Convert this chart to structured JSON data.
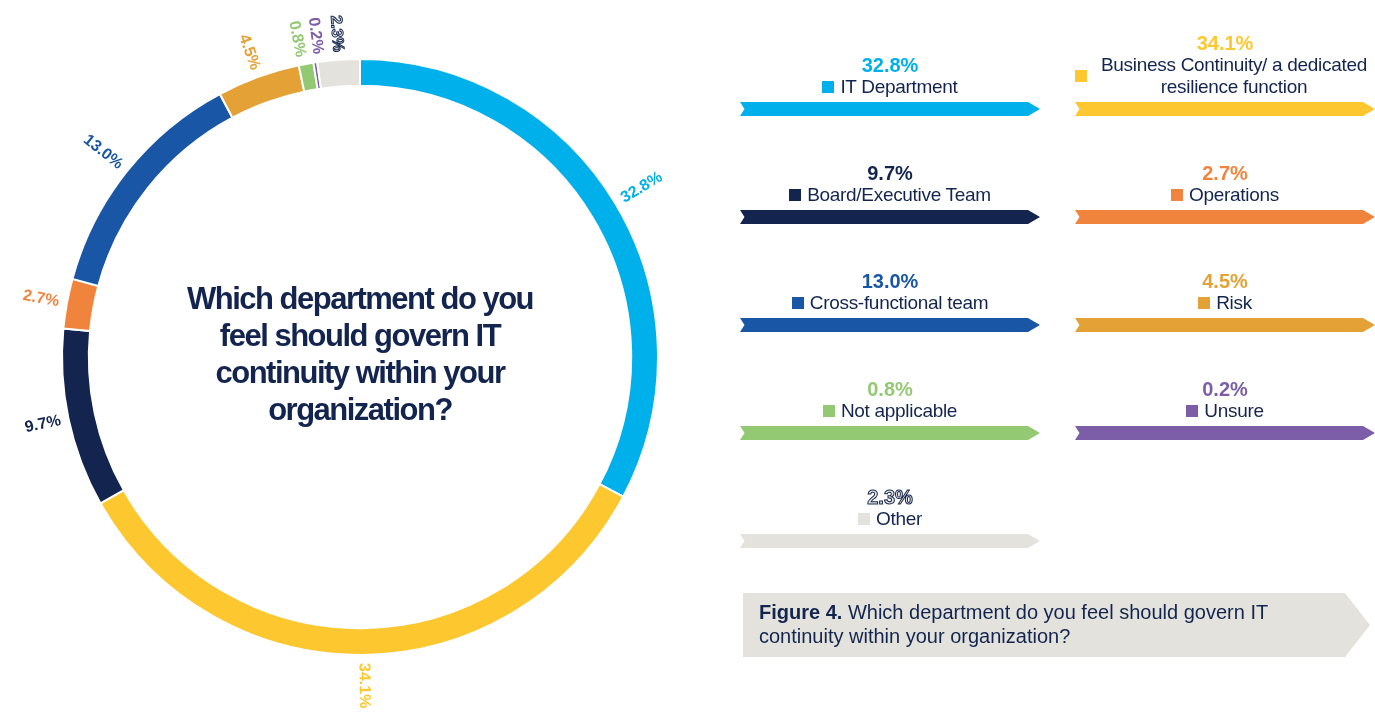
{
  "chart_data": {
    "type": "donut",
    "title": "Which department do you feel should govern IT continuity within your organization?",
    "categories": [
      "IT Department",
      "Business Continuity/ a dedicated resilience function",
      "Board/Executive Team",
      "Operations",
      "Cross-functional team",
      "Risk",
      "Not applicable",
      "Unsure",
      "Other"
    ],
    "values": [
      32.8,
      34.1,
      9.7,
      2.7,
      13.0,
      4.5,
      0.8,
      0.2,
      2.3
    ],
    "value_labels": [
      "32.8%",
      "34.1%",
      "9.7%",
      "2.7%",
      "13.0%",
      "4.5%",
      "0.8%",
      "0.2%",
      "2.3%"
    ],
    "colors": [
      "#00b0ea",
      "#fdc82f",
      "#13254f",
      "#f0843c",
      "#1957a6",
      "#e3a136",
      "#94c973",
      "#7b5ea7",
      "#e3e2dc"
    ],
    "legend": "right",
    "annotations": [
      "Figure 4. Which department do you feel should govern IT continuity within your organization?"
    ]
  }
}
